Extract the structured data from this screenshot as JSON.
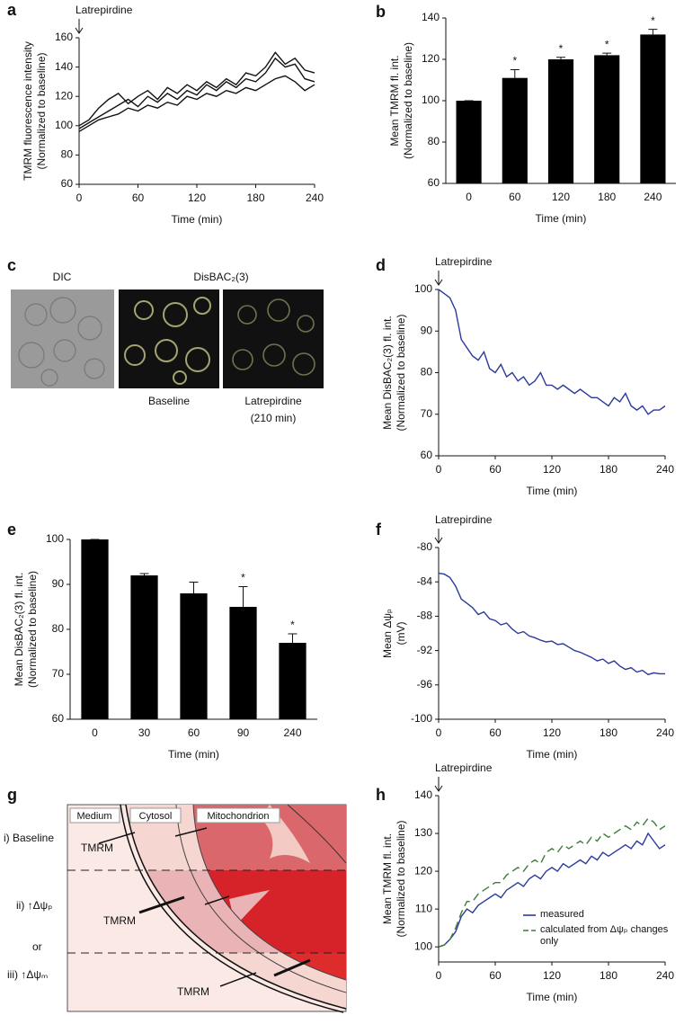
{
  "chart_data": [
    {
      "type": "line",
      "label": "a",
      "annotation": "Latrepirdine",
      "xlabel": "Time (min)",
      "ylabel": [
        "TMRM fluorescence intensity",
        "(Normalized to baseline)"
      ],
      "x": [
        0,
        10,
        20,
        30,
        40,
        50,
        60,
        70,
        80,
        90,
        100,
        110,
        120,
        130,
        140,
        150,
        160,
        170,
        180,
        190,
        200,
        210,
        220,
        230,
        240
      ],
      "xlim": [
        0,
        240
      ],
      "xticks": [
        0,
        60,
        120,
        180,
        240
      ],
      "ylim": [
        60,
        160
      ],
      "yticks": [
        60,
        80,
        100,
        120,
        140,
        160
      ],
      "series": [
        {
          "color": "#111111",
          "values": [
            100,
            104,
            112,
            118,
            122,
            115,
            120,
            124,
            118,
            126,
            122,
            128,
            124,
            130,
            126,
            132,
            128,
            136,
            134,
            140,
            150,
            142,
            146,
            138,
            136
          ]
        },
        {
          "color": "#111111",
          "values": [
            98,
            102,
            106,
            110,
            114,
            118,
            113,
            120,
            116,
            122,
            118,
            124,
            121,
            128,
            124,
            130,
            126,
            132,
            130,
            136,
            146,
            140,
            142,
            132,
            130
          ]
        },
        {
          "color": "#111111",
          "values": [
            96,
            100,
            104,
            106,
            108,
            112,
            110,
            114,
            112,
            116,
            114,
            120,
            118,
            122,
            120,
            124,
            122,
            126,
            124,
            128,
            132,
            134,
            130,
            124,
            128
          ]
        }
      ]
    },
    {
      "type": "bar",
      "label": "b",
      "xlabel": "Time (min)",
      "ylabel": [
        "Mean TMRM fl. int.",
        "(Normalized to baseline)"
      ],
      "categories": [
        "0",
        "60",
        "120",
        "180",
        "240"
      ],
      "values": [
        100,
        111,
        120,
        122,
        132
      ],
      "errors": [
        0,
        4,
        1,
        1,
        2.5
      ],
      "significance": [
        null,
        "*",
        "*",
        "*",
        "*"
      ],
      "color": "#000000",
      "ylim": [
        60,
        140
      ],
      "yticks": [
        60,
        80,
        100,
        120,
        140
      ]
    },
    {
      "type": "image",
      "label": "c",
      "titles": [
        "DIC",
        "DisBAC₂(3)"
      ],
      "captions": [
        [
          "Baseline"
        ],
        [
          "Latrepirdine",
          "(210 min)"
        ]
      ]
    },
    {
      "type": "line",
      "label": "d",
      "annotation": "Latrepirdine",
      "xlabel": "Time (min)",
      "ylabel": [
        "Mean DisBAC₂(3) fl. int.",
        "(Normalized to baseline)"
      ],
      "x": [
        0,
        6,
        12,
        18,
        24,
        30,
        36,
        42,
        48,
        54,
        60,
        66,
        72,
        78,
        84,
        90,
        96,
        102,
        108,
        114,
        120,
        126,
        132,
        138,
        144,
        150,
        156,
        162,
        168,
        174,
        180,
        186,
        192,
        198,
        204,
        210,
        216,
        222,
        228,
        234,
        240
      ],
      "xlim": [
        0,
        240
      ],
      "xticks": [
        0,
        60,
        120,
        180,
        240
      ],
      "ylim": [
        60,
        100
      ],
      "yticks": [
        60,
        70,
        80,
        90,
        100
      ],
      "series": [
        {
          "color": "#2b3a9a",
          "values": [
            100,
            99,
            98,
            95,
            88,
            86,
            84,
            83,
            85,
            81,
            80,
            82,
            79,
            80,
            78,
            79,
            77,
            78,
            80,
            77,
            77,
            76,
            77,
            76,
            75,
            76,
            75,
            74,
            74,
            73,
            72,
            74,
            73,
            75,
            72,
            71,
            72,
            70,
            71,
            71,
            72
          ]
        }
      ]
    },
    {
      "type": "bar",
      "label": "e",
      "xlabel": "Time (min)",
      "ylabel": [
        "Mean DisBAC₂(3) fl. int.",
        "(Normalized to baseline)"
      ],
      "categories": [
        "0",
        "30",
        "60",
        "90",
        "240"
      ],
      "values": [
        100,
        92,
        88,
        85,
        77
      ],
      "errors": [
        0,
        0.4,
        2.5,
        4.5,
        2
      ],
      "significance": [
        null,
        null,
        null,
        "*",
        "*"
      ],
      "color": "#000000",
      "ylim": [
        60,
        100
      ],
      "yticks": [
        60,
        70,
        80,
        90,
        100
      ]
    },
    {
      "type": "line",
      "label": "f",
      "annotation": "Latrepirdine",
      "xlabel": "Time (min)",
      "ylabel": [
        "Mean  Δψₚ",
        "(mV)"
      ],
      "x": [
        0,
        6,
        12,
        18,
        24,
        30,
        36,
        42,
        48,
        54,
        60,
        66,
        72,
        78,
        84,
        90,
        96,
        102,
        108,
        114,
        120,
        126,
        132,
        138,
        144,
        150,
        156,
        162,
        168,
        174,
        180,
        186,
        192,
        198,
        204,
        210,
        216,
        222,
        228,
        234,
        240
      ],
      "xlim": [
        0,
        240
      ],
      "xticks": [
        0,
        60,
        120,
        180,
        240
      ],
      "ylim": [
        -100,
        -80
      ],
      "yticks": [
        -100,
        -96,
        -92,
        -88,
        -84,
        -80
      ],
      "series": [
        {
          "color": "#2b3a9a",
          "values": [
            -83,
            -83.1,
            -83.5,
            -84.5,
            -86,
            -86.5,
            -87,
            -87.8,
            -87.5,
            -88.3,
            -88.5,
            -89,
            -88.8,
            -89.5,
            -90,
            -89.8,
            -90.3,
            -90.5,
            -90.8,
            -91,
            -90.9,
            -91.3,
            -91.2,
            -91.6,
            -92,
            -92.2,
            -92.5,
            -92.8,
            -93.2,
            -93,
            -93.5,
            -93.2,
            -93.8,
            -94.2,
            -94,
            -94.5,
            -94.3,
            -94.8,
            -94.6,
            -94.7,
            -94.7
          ]
        }
      ]
    },
    {
      "type": "diagram",
      "label": "g",
      "regions": [
        "Medium",
        "Cytosol",
        "Mitochondrion"
      ],
      "conditions": [
        "i) Baseline",
        "ii) ↑Δψₚ",
        "or",
        "iii) ↑Δψₘ"
      ],
      "probe": [
        "TMRM",
        "TMRM",
        "TMRM"
      ]
    },
    {
      "type": "line",
      "label": "h",
      "annotation": "Latrepirdine",
      "xlabel": "Time (min)",
      "ylabel": [
        "Mean TMRM fl. int.",
        "(Normalized to baseline)"
      ],
      "x": [
        0,
        6,
        12,
        18,
        24,
        30,
        36,
        42,
        48,
        54,
        60,
        66,
        72,
        78,
        84,
        90,
        96,
        102,
        108,
        114,
        120,
        126,
        132,
        138,
        144,
        150,
        156,
        162,
        168,
        174,
        180,
        186,
        192,
        198,
        204,
        210,
        216,
        222,
        228,
        234,
        240
      ],
      "xlim": [
        0,
        240
      ],
      "xticks": [
        0,
        60,
        120,
        180,
        240
      ],
      "ylim": [
        96,
        140
      ],
      "yticks": [
        100,
        110,
        120,
        130,
        140
      ],
      "series": [
        {
          "name": "measured",
          "color": "#2b3a9a",
          "dashed": false,
          "values": [
            100,
            100.5,
            102,
            104,
            108,
            110,
            109,
            111,
            112,
            113,
            114,
            113,
            115,
            116,
            117,
            116,
            118,
            119,
            118,
            120,
            121,
            120,
            122,
            121,
            122,
            123,
            122,
            124,
            123,
            125,
            124,
            125,
            126,
            127,
            126,
            128,
            127,
            130,
            128,
            126,
            127
          ]
        },
        {
          "name": "calculated from Δψₚ changes only",
          "color": "#3e7d3a",
          "dashed": true,
          "values": [
            100,
            100.5,
            102,
            105,
            109,
            112,
            112,
            114,
            115,
            116,
            117,
            117,
            119,
            120,
            121,
            120,
            122,
            123,
            122,
            125,
            126,
            125,
            127,
            126,
            127,
            128,
            127,
            129,
            128,
            130,
            129,
            130,
            131,
            132,
            131,
            133,
            132,
            134,
            133,
            131,
            132
          ]
        }
      ]
    }
  ]
}
